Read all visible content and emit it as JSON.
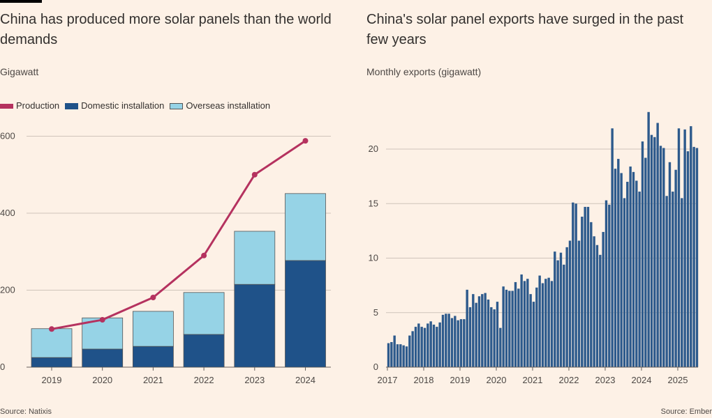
{
  "colors": {
    "production": "#b5325f",
    "domestic": "#1f5289",
    "overseas": "#96d3e6",
    "exports": "#2d5a8c",
    "grid": "#cfc4ba",
    "background": "#fdf1e6"
  },
  "chart_data": [
    {
      "type": "bar",
      "title": "China has produced more solar panels than the world demands",
      "ylabel": "Gigawatt",
      "legend": [
        "Production",
        "Domestic installation",
        "Overseas installation"
      ],
      "legend_position": "top-left",
      "categories": [
        "2019",
        "2020",
        "2021",
        "2022",
        "2023",
        "2024"
      ],
      "series": [
        {
          "name": "Domestic installation",
          "kind": "stacked-bar",
          "values": [
            25,
            47,
            54,
            85,
            215,
            277
          ]
        },
        {
          "name": "Overseas installation",
          "kind": "stacked-bar",
          "values": [
            75,
            81,
            91,
            109,
            138,
            174
          ]
        },
        {
          "name": "Production",
          "kind": "line",
          "values": [
            99,
            123,
            181,
            290,
            500,
            588
          ]
        }
      ],
      "yticks": [
        0,
        200,
        400,
        600
      ],
      "ylim": [
        0,
        620
      ],
      "grid": true,
      "source": "Source: Natixis"
    },
    {
      "type": "bar",
      "title": "China's solar panel exports have surged in the past few years",
      "ylabel": "Monthly exports (gigawatt)",
      "x_start": "2017-01",
      "x_end": "2025-07",
      "xticks": [
        "2017",
        "2018",
        "2019",
        "2020",
        "2021",
        "2022",
        "2023",
        "2024",
        "2025"
      ],
      "yticks": [
        0,
        5,
        10,
        15,
        20
      ],
      "ylim": [
        0,
        24
      ],
      "grid": true,
      "values": [
        2.2,
        2.3,
        2.9,
        2.1,
        2.1,
        2.0,
        1.9,
        2.9,
        3.3,
        3.7,
        4.0,
        3.7,
        3.6,
        4.0,
        4.2,
        3.9,
        3.7,
        4.1,
        4.8,
        4.9,
        4.9,
        4.5,
        4.7,
        4.3,
        4.4,
        4.4,
        7.1,
        5.5,
        6.7,
        5.9,
        6.5,
        6.7,
        6.8,
        6.2,
        5.5,
        5.3,
        6.0,
        3.6,
        7.4,
        7.1,
        7.0,
        7.0,
        7.8,
        7.2,
        8.5,
        7.9,
        8.1,
        6.7,
        6.0,
        7.3,
        8.4,
        7.7,
        8.1,
        8.2,
        7.9,
        10.6,
        9.8,
        10.5,
        9.4,
        11.0,
        11.6,
        15.1,
        15.0,
        11.6,
        13.8,
        14.7,
        14.7,
        13.3,
        12.0,
        11.2,
        10.3,
        12.4,
        15.3,
        14.9,
        21.9,
        18.2,
        19.1,
        17.8,
        15.5,
        17.0,
        18.4,
        17.9,
        17.1,
        16.1,
        20.7,
        19.2,
        23.4,
        21.3,
        21.1,
        22.4,
        20.3,
        20.1,
        15.7,
        18.8,
        16.1,
        18.1,
        21.9,
        15.5,
        21.8,
        19.8,
        22.1,
        20.2,
        20.1
      ],
      "source": "Source: Ember"
    }
  ]
}
